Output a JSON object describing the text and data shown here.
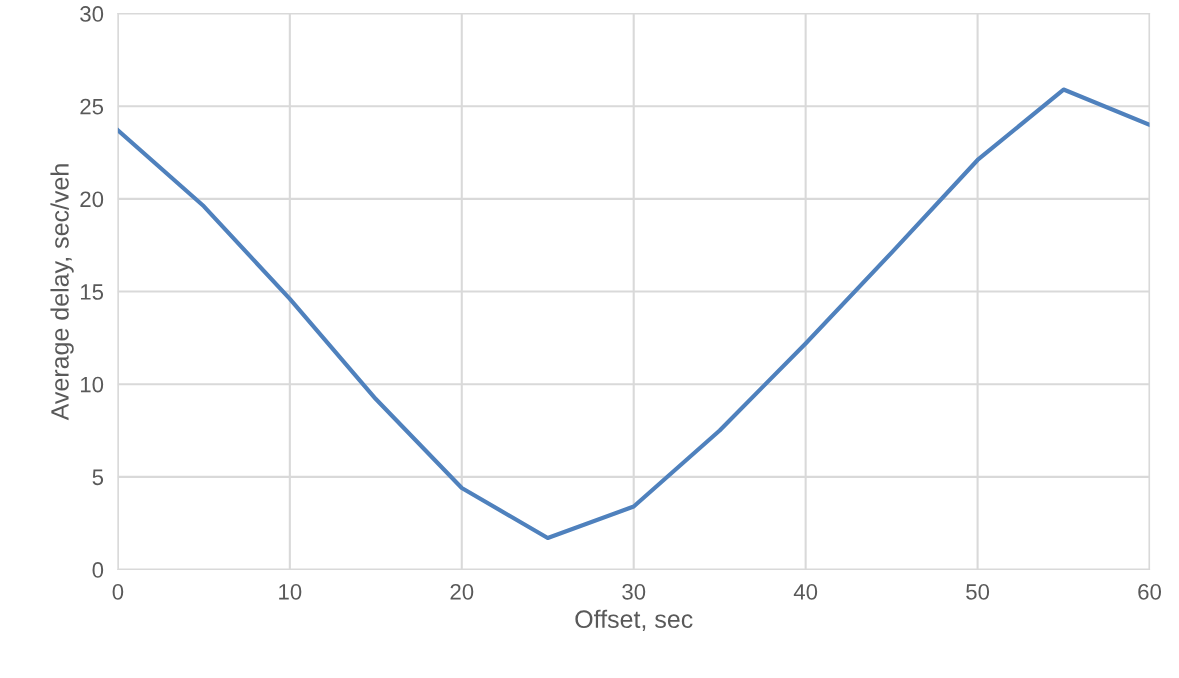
{
  "chart_data": {
    "type": "line",
    "xlabel": "Offset, sec",
    "ylabel": "Average delay, sec/veh",
    "x": [
      0,
      5,
      10,
      15,
      20,
      25,
      30,
      35,
      40,
      45,
      50,
      55,
      60
    ],
    "series": [
      {
        "color": "#4f81bd",
        "values": [
          23.7,
          19.6,
          14.6,
          9.2,
          4.4,
          1.7,
          3.4,
          7.5,
          12.2,
          17.1,
          22.1,
          25.9,
          24.0
        ]
      }
    ],
    "xlim": [
      0,
      60
    ],
    "xticks": [
      0,
      10,
      20,
      30,
      40,
      50,
      60
    ],
    "ylim": [
      0,
      30
    ],
    "yticks": [
      0,
      5,
      10,
      15,
      20,
      25,
      30
    ],
    "grid": true,
    "marker": "none",
    "line_style": "solid"
  }
}
